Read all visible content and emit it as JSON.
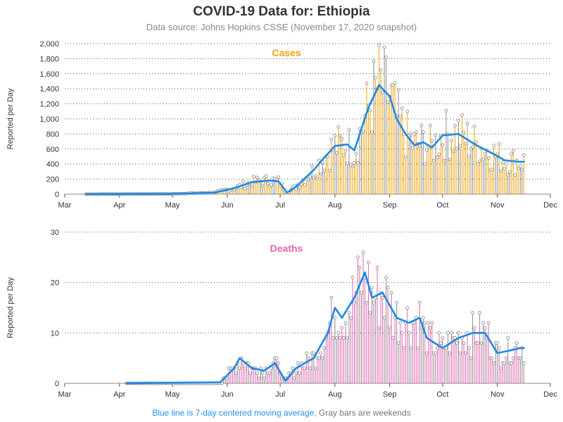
{
  "title": "COVID-19 Data for: Ethiopia",
  "subtitle": "Data source: Johns Hopkins CSSE (November 17, 2020 snapshot)",
  "footnote": {
    "blue_part": "Blue line is 7-day centered moving average,",
    "gray_part": "Gray bars are weekends"
  },
  "colors": {
    "cases": "#f0a30a",
    "deaths": "#e066b0",
    "weekend": "#8c8c8c",
    "avg_line": "#1e88e5",
    "grid": "#555555",
    "marker": "#888888"
  },
  "chart_data": [
    {
      "type": "bar",
      "title": "Cases",
      "ylabel": "Reported per Day",
      "x_tick_labels": [
        "Mar",
        "Apr",
        "May",
        "Jun",
        "Jul",
        "Aug",
        "Sep",
        "Oct",
        "Nov",
        "Dec"
      ],
      "ylim": [
        0,
        2000
      ],
      "yticks": [
        0,
        200,
        400,
        600,
        800,
        1000,
        1200,
        1400,
        1600,
        1800,
        2000
      ],
      "ytick_labels": [
        "0",
        "200",
        "400",
        "600",
        "800",
        "1,000",
        "1,200",
        "1,400",
        "1,600",
        "1,800",
        "2,000"
      ],
      "grid": "horizontal dotted",
      "x_start": "2020-03-01",
      "x_end": "2020-12-01",
      "series_start": "2020-03-13",
      "series_end": "2020-11-16",
      "values_by_segment": [
        {
          "from": "2020-03-13",
          "to": "2020-04-30",
          "approx": 5
        },
        {
          "from": "2020-05-01",
          "to": "2020-05-31",
          "approx": 25
        },
        {
          "from": "2020-06-01",
          "to": "2020-06-30",
          "approx": 170
        },
        {
          "from": "2020-07-01",
          "to": "2020-07-10",
          "approx": 60
        },
        {
          "from": "2020-07-11",
          "to": "2020-07-31",
          "approx": 600
        },
        {
          "from": "2020-08-01",
          "to": "2020-08-15",
          "approx": 900
        },
        {
          "from": "2020-08-16",
          "to": "2020-08-31",
          "approx": 1400
        },
        {
          "from": "2020-09-01",
          "to": "2020-09-30",
          "approx": 700
        },
        {
          "from": "2020-10-01",
          "to": "2020-10-31",
          "approx": 780
        },
        {
          "from": "2020-11-01",
          "to": "2020-11-16",
          "approx": 430
        }
      ],
      "moving_average_points": [
        [
          "2020-03-13",
          0
        ],
        [
          "2020-04-30",
          3
        ],
        [
          "2020-05-25",
          20
        ],
        [
          "2020-06-05",
          80
        ],
        [
          "2020-06-15",
          160
        ],
        [
          "2020-06-25",
          180
        ],
        [
          "2020-06-30",
          170
        ],
        [
          "2020-07-05",
          20
        ],
        [
          "2020-07-10",
          100
        ],
        [
          "2020-07-20",
          320
        ],
        [
          "2020-07-25",
          460
        ],
        [
          "2020-08-01",
          640
        ],
        [
          "2020-08-08",
          660
        ],
        [
          "2020-08-12",
          580
        ],
        [
          "2020-08-20",
          1150
        ],
        [
          "2020-08-26",
          1450
        ],
        [
          "2020-09-01",
          1300
        ],
        [
          "2020-09-05",
          1000
        ],
        [
          "2020-09-10",
          800
        ],
        [
          "2020-09-15",
          650
        ],
        [
          "2020-09-20",
          690
        ],
        [
          "2020-09-25",
          620
        ],
        [
          "2020-10-01",
          780
        ],
        [
          "2020-10-10",
          800
        ],
        [
          "2020-10-20",
          650
        ],
        [
          "2020-10-31",
          520
        ],
        [
          "2020-11-05",
          450
        ],
        [
          "2020-11-13",
          430
        ]
      ]
    },
    {
      "type": "bar",
      "title": "Deaths",
      "ylabel": "Reported per Day",
      "x_tick_labels": [
        "Mar",
        "Apr",
        "May",
        "Jun",
        "Jul",
        "Aug",
        "Sep",
        "Oct",
        "Nov",
        "Dec"
      ],
      "ylim": [
        0,
        30
      ],
      "yticks": [
        0,
        10,
        20,
        30
      ],
      "ytick_labels": [
        "0",
        "10",
        "20",
        "30"
      ],
      "grid": "horizontal dotted",
      "x_start": "2020-03-01",
      "x_end": "2020-12-01",
      "series_start": "2020-04-05",
      "series_end": "2020-11-16",
      "values_by_segment": [
        {
          "from": "2020-04-05",
          "to": "2020-05-31",
          "approx": 0.3
        },
        {
          "from": "2020-06-01",
          "to": "2020-06-30",
          "approx": 4
        },
        {
          "from": "2020-07-01",
          "to": "2020-07-20",
          "approx": 4
        },
        {
          "from": "2020-07-21",
          "to": "2020-08-10",
          "approx": 13
        },
        {
          "from": "2020-08-11",
          "to": "2020-08-31",
          "approx": 18
        },
        {
          "from": "2020-09-01",
          "to": "2020-09-30",
          "approx": 13
        },
        {
          "from": "2020-10-01",
          "to": "2020-10-31",
          "approx": 9
        },
        {
          "from": "2020-11-01",
          "to": "2020-11-16",
          "approx": 7
        }
      ],
      "moving_average_points": [
        [
          "2020-04-05",
          0
        ],
        [
          "2020-05-28",
          0.2
        ],
        [
          "2020-06-05",
          3
        ],
        [
          "2020-06-08",
          5
        ],
        [
          "2020-06-15",
          3
        ],
        [
          "2020-06-22",
          2.5
        ],
        [
          "2020-06-28",
          4
        ],
        [
          "2020-07-04",
          0.5
        ],
        [
          "2020-07-10",
          3
        ],
        [
          "2020-07-20",
          5
        ],
        [
          "2020-07-28",
          10
        ],
        [
          "2020-08-01",
          15
        ],
        [
          "2020-08-05",
          13
        ],
        [
          "2020-08-12",
          17
        ],
        [
          "2020-08-18",
          22
        ],
        [
          "2020-08-22",
          17
        ],
        [
          "2020-08-28",
          18
        ],
        [
          "2020-09-05",
          13
        ],
        [
          "2020-09-12",
          12
        ],
        [
          "2020-09-18",
          13
        ],
        [
          "2020-09-22",
          9
        ],
        [
          "2020-10-01",
          7
        ],
        [
          "2020-10-10",
          9
        ],
        [
          "2020-10-18",
          10
        ],
        [
          "2020-10-25",
          10
        ],
        [
          "2020-11-01",
          6
        ],
        [
          "2020-11-08",
          6.5
        ],
        [
          "2020-11-14",
          7
        ]
      ]
    }
  ]
}
